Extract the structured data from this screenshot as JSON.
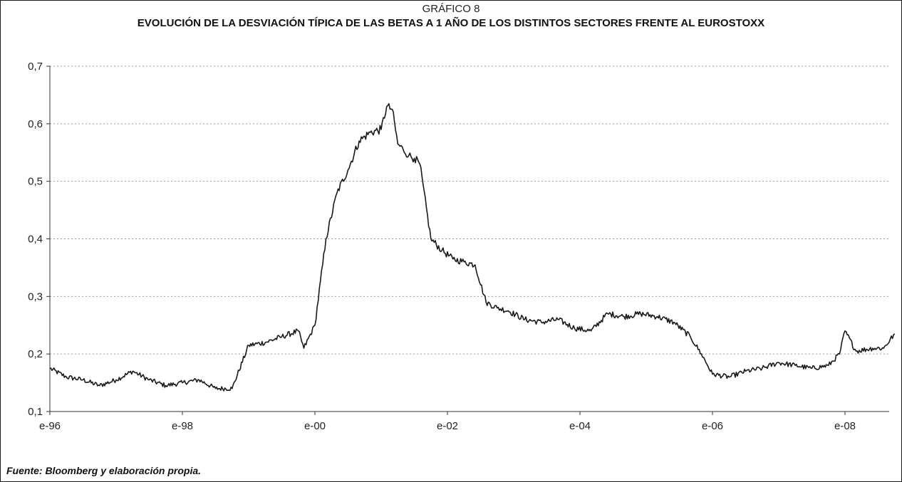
{
  "header": {
    "kicker": "GRÁFICO 8",
    "title": "EVOLUCIÓN DE LA DESVIACIÓN TÍPICA DE LAS BETAS A 1 AÑO DE LOS DISTINTOS SECTORES FRENTE AL EUROSTOXX"
  },
  "footer": {
    "source": "Fuente: Bloomberg y elaboración propia."
  },
  "colors": {
    "line": "#1a1a1a",
    "grid": "#9a9a9a",
    "axis": "#333333"
  },
  "chart_data": {
    "type": "line",
    "title": "EVOLUCIÓN DE LA DESVIACIÓN TÍPICA DE LAS BETAS A 1 AÑO DE LOS DISTINTOS SECTORES FRENTE AL EUROSTOXX",
    "xlabel": "",
    "ylabel": "",
    "grid": true,
    "xlim": [
      "1996-01",
      "2008-10"
    ],
    "ylim": [
      0.1,
      0.7
    ],
    "x_ticks": [
      "e-96",
      "e-98",
      "e-00",
      "e-02",
      "e-04",
      "e-06",
      "e-08"
    ],
    "y_ticks": [
      "0,1",
      "0,2",
      "0,3",
      "0,4",
      "0,5",
      "0,6",
      "0,7"
    ],
    "series": [
      {
        "x": [
          "1996-01",
          "1996-04",
          "1996-07",
          "1996-10",
          "1997-01",
          "1997-04",
          "1997-07",
          "1997-10",
          "1998-01",
          "1998-04",
          "1998-07",
          "1998-10",
          "1999-01",
          "1999-04",
          "1999-07",
          "1999-10",
          "1999-11",
          "2000-01",
          "2000-03",
          "2000-05",
          "2000-07",
          "2000-09",
          "2000-11",
          "2001-01",
          "2001-02",
          "2001-03",
          "2001-04",
          "2001-05",
          "2001-06",
          "2001-07",
          "2001-08",
          "2001-10",
          "2001-12",
          "2002-02",
          "2002-04",
          "2002-06",
          "2002-08",
          "2002-10",
          "2002-12",
          "2003-03",
          "2003-06",
          "2003-09",
          "2003-12",
          "2004-03",
          "2004-06",
          "2004-09",
          "2004-12",
          "2005-03",
          "2005-06",
          "2005-09",
          "2005-11",
          "2006-01",
          "2006-04",
          "2006-07",
          "2006-10",
          "2007-01",
          "2007-04",
          "2007-07",
          "2007-10",
          "2007-12",
          "2008-01",
          "2008-03",
          "2008-06",
          "2008-08",
          "2008-10"
        ],
        "y": [
          0.175,
          0.16,
          0.155,
          0.145,
          0.155,
          0.17,
          0.155,
          0.145,
          0.15,
          0.155,
          0.14,
          0.14,
          0.215,
          0.22,
          0.23,
          0.24,
          0.21,
          0.25,
          0.4,
          0.48,
          0.52,
          0.57,
          0.585,
          0.59,
          0.63,
          0.625,
          0.565,
          0.555,
          0.545,
          0.54,
          0.53,
          0.4,
          0.38,
          0.365,
          0.36,
          0.355,
          0.29,
          0.28,
          0.275,
          0.26,
          0.255,
          0.26,
          0.245,
          0.24,
          0.27,
          0.265,
          0.27,
          0.265,
          0.255,
          0.23,
          0.2,
          0.165,
          0.16,
          0.17,
          0.175,
          0.185,
          0.18,
          0.175,
          0.18,
          0.2,
          0.24,
          0.205,
          0.21,
          0.21,
          0.235
        ]
      }
    ]
  }
}
